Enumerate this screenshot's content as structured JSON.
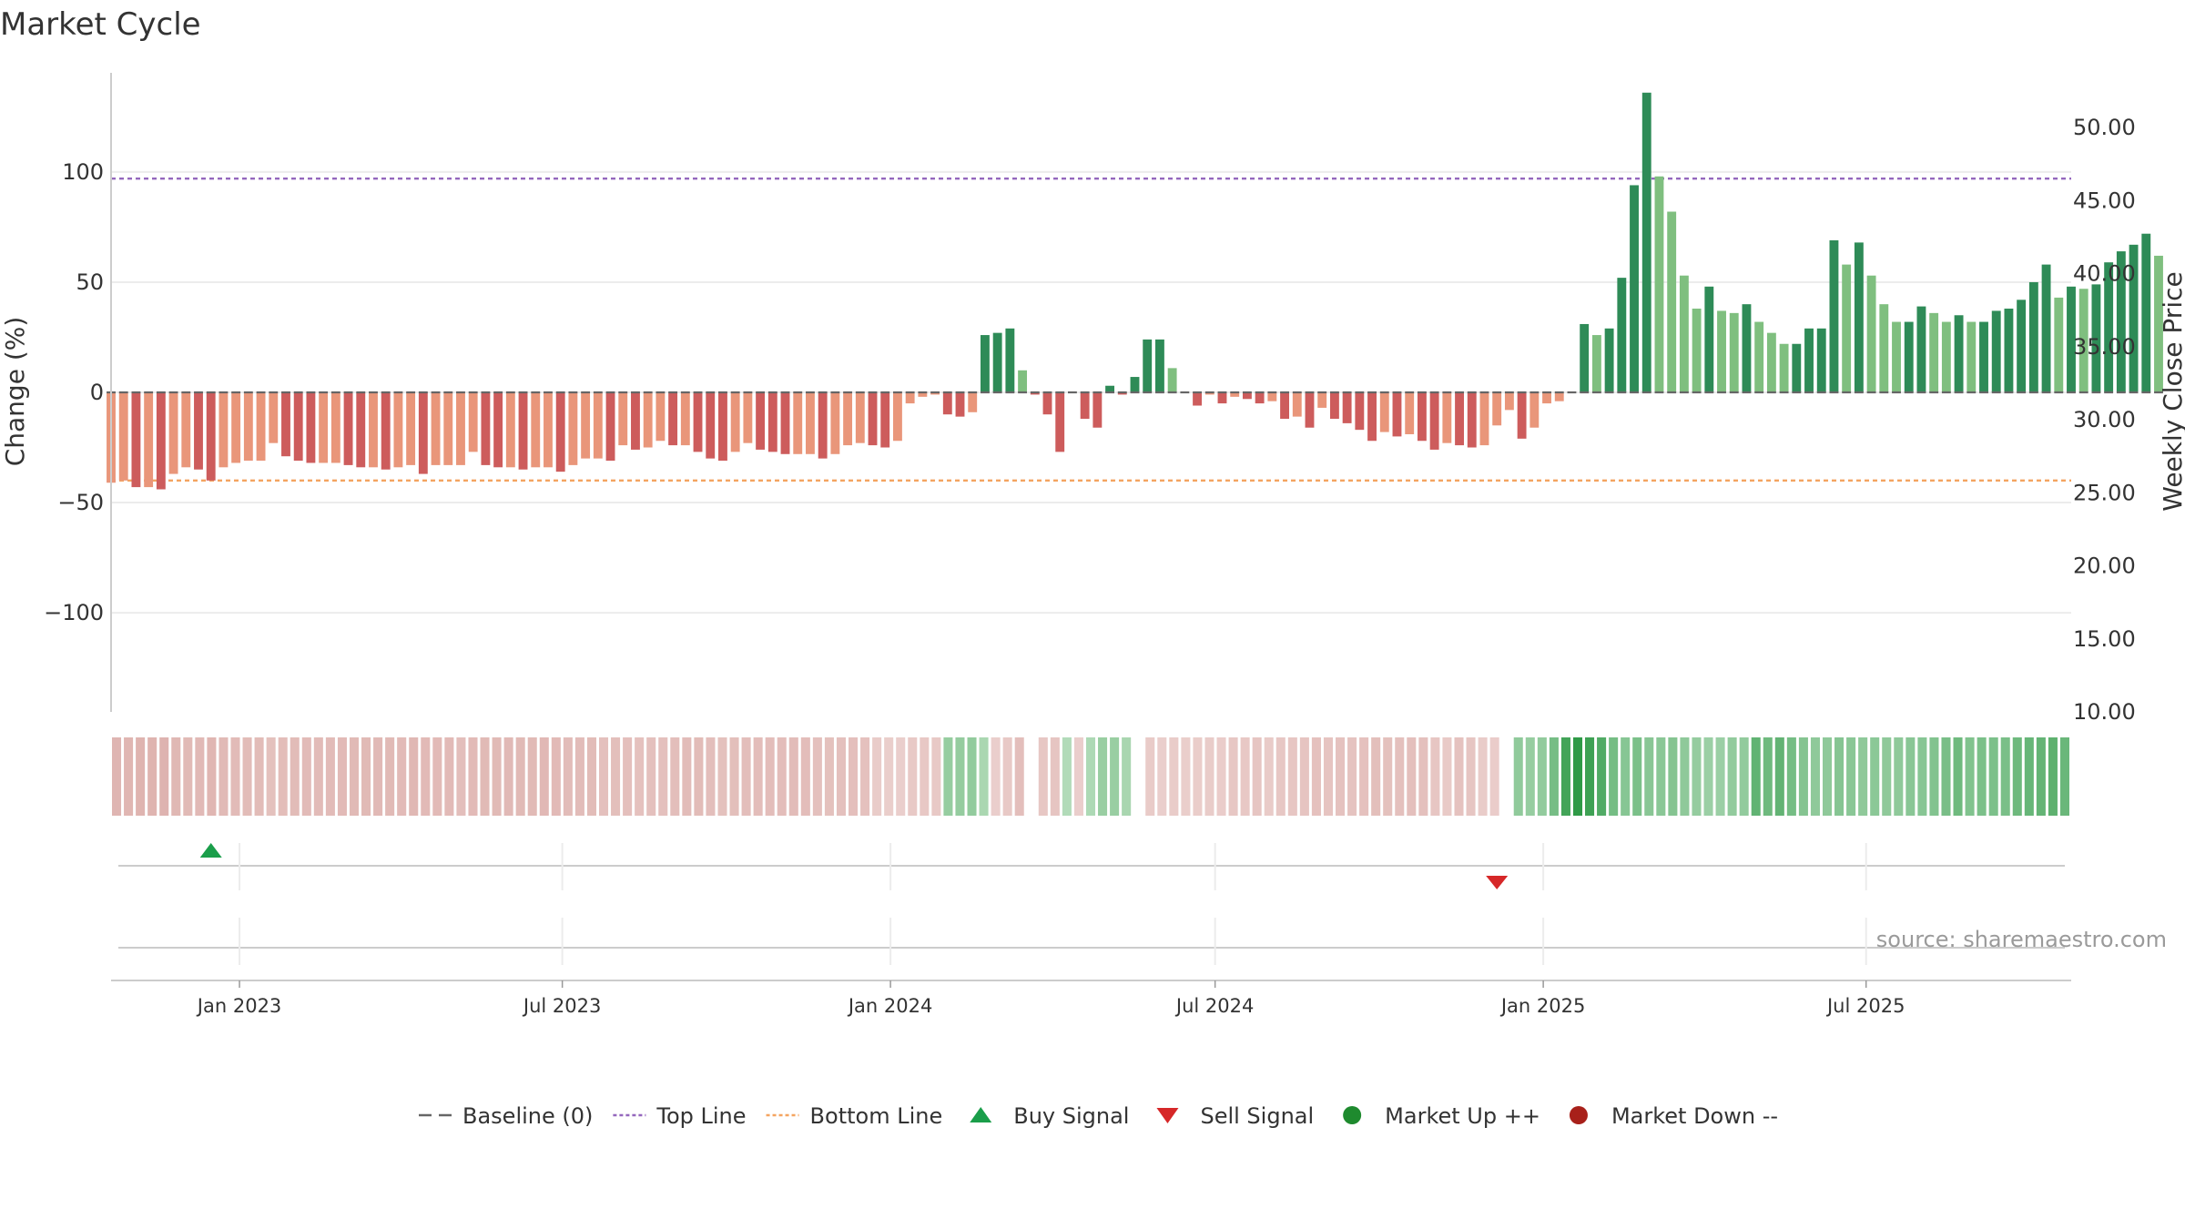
{
  "title": "Market Cycle",
  "source": "source: sharemaestro.com",
  "colors": {
    "up_strong": "#2e8b57",
    "up_light": "#7fbf7f",
    "down_strong": "#cd5c5c",
    "down_light": "#e9967a",
    "top_line": "#9467bd",
    "bottom_line": "#f4a460",
    "baseline": "#666666",
    "buy": "#1a9e4a",
    "sell": "#d62728",
    "market_up": "#1e8a2e",
    "market_down": "#a8201a"
  },
  "legend": [
    {
      "label": "Baseline (0)",
      "kind": "dash-line",
      "color": "#666666",
      "icon": "baseline-dash-icon"
    },
    {
      "label": "Top Line",
      "kind": "dot-line",
      "color": "#9467bd",
      "icon": "top-line-icon"
    },
    {
      "label": "Bottom Line",
      "kind": "dot-line",
      "color": "#f4a460",
      "icon": "bottom-line-icon"
    },
    {
      "label": "Buy Signal",
      "kind": "tri-up",
      "color": "#1a9e4a",
      "icon": "buy-triangle-icon"
    },
    {
      "label": "Sell Signal",
      "kind": "tri-down",
      "color": "#d62728",
      "icon": "sell-triangle-icon"
    },
    {
      "label": "Market Up ++",
      "kind": "circle",
      "color": "#1e8a2e",
      "icon": "market-up-circle-icon"
    },
    {
      "label": "Market Down --",
      "kind": "circle",
      "color": "#a8201a",
      "icon": "market-down-circle-icon"
    }
  ],
  "chart_data": {
    "type": "bar",
    "title": "Market Cycle",
    "ylabel": "Change (%)",
    "ylabel_right": "Weekly Close Price",
    "ylim": [
      -145,
      145
    ],
    "ylim_right": [
      10,
      53.75
    ],
    "yticks": [
      100,
      50,
      0,
      -50,
      -100
    ],
    "ytick_labels": [
      "100",
      "50",
      "0",
      "−50",
      "−100"
    ],
    "yticks_right": [
      50,
      45,
      40,
      35,
      30,
      25,
      20,
      15,
      10
    ],
    "ytick_labels_right": [
      "50.00",
      "45.00",
      "40.00",
      "35.00",
      "30.00",
      "25.00",
      "20.00",
      "15.00",
      "10.00"
    ],
    "x_start": "2022-10-21",
    "x_end": "2025-10-24",
    "xticks": [
      "2023-01-01",
      "2023-07-01",
      "2024-01-01",
      "2024-07-01",
      "2025-01-01",
      "2025-07-01"
    ],
    "xtick_labels": [
      "Jan 2023",
      "Jul 2023",
      "Jan 2024",
      "Jul 2024",
      "Jan 2025",
      "Jul 2025"
    ],
    "top_line": 97,
    "bottom_line": -40,
    "baseline": 0,
    "grid": true,
    "legend_position": "bottom",
    "first_week": "2022-10-21",
    "week_step_days": 7,
    "values": [
      -41,
      -40,
      -43,
      -43,
      -44,
      -37,
      -34,
      -35,
      -40,
      -34,
      -32,
      -31,
      -31,
      -23,
      -29,
      -31,
      -32,
      -32,
      -32,
      -33,
      -34,
      -34,
      -35,
      -34,
      -33,
      -37,
      -33,
      -33,
      -33,
      -27,
      -33,
      -34,
      -34,
      -35,
      -34,
      -34,
      -36,
      -33,
      -30,
      -30,
      -31,
      -24,
      -26,
      -25,
      -22,
      -24,
      -24,
      -27,
      -30,
      -31,
      -27,
      -23,
      -26,
      -27,
      -28,
      -28,
      -28,
      -30,
      -28,
      -24,
      -23,
      -24,
      -25,
      -22,
      -5,
      -2,
      -1,
      -10,
      -11,
      -9,
      26,
      27,
      29,
      10,
      -1,
      -10,
      -27,
      0,
      -12,
      -16,
      3,
      -1,
      7,
      24,
      24,
      11,
      0,
      -6,
      -1,
      -5,
      -2,
      -3,
      -5,
      -4,
      -12,
      -11,
      -16,
      -7,
      -12,
      -14,
      -17,
      -22,
      -18,
      -20,
      -19,
      -22,
      -26,
      -23,
      -24,
      -25,
      -24,
      -15,
      -8,
      -21,
      -16,
      -5,
      -4,
      0,
      31,
      26,
      29,
      52,
      94,
      136,
      98,
      82,
      53,
      38,
      48,
      37,
      36,
      40,
      32,
      27,
      22,
      22,
      29,
      29,
      69,
      58,
      68,
      53,
      40,
      32,
      32,
      39,
      36,
      32,
      35,
      32,
      32,
      37,
      38,
      42,
      50,
      58,
      43,
      48,
      47,
      49,
      59,
      64,
      67,
      72,
      62
    ],
    "buy_signals": [
      "2022-12-16"
    ],
    "sell_signals": [
      "2024-12-06"
    ]
  }
}
